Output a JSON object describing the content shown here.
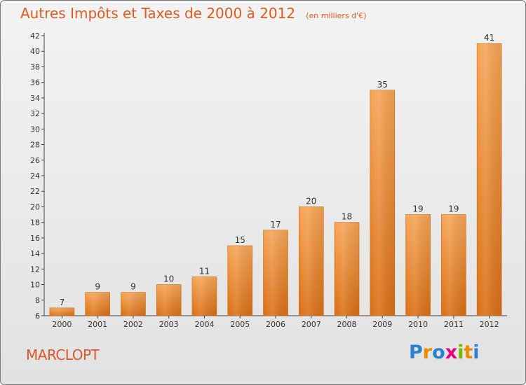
{
  "chart_data": {
    "type": "bar",
    "title": "Autres Impôts et Taxes de 2000 à 2012",
    "subtitle": "(en milliers d'€)",
    "categories": [
      "2000",
      "2001",
      "2002",
      "2003",
      "2004",
      "2005",
      "2006",
      "2007",
      "2008",
      "2009",
      "2010",
      "2011",
      "2012"
    ],
    "values": [
      7,
      9,
      9,
      10,
      11,
      15,
      17,
      20,
      18,
      35,
      19,
      19,
      41
    ],
    "ylim": [
      6,
      42
    ],
    "yticks": [
      6,
      8,
      10,
      12,
      14,
      16,
      18,
      20,
      22,
      24,
      26,
      28,
      30,
      32,
      34,
      36,
      38,
      40,
      42
    ],
    "grid": false,
    "bar_color_top": "#f5a555",
    "bar_color_bottom": "#d96f14"
  },
  "footer": {
    "location": "MARCLOPT",
    "brand_letters": [
      {
        "ch": "P",
        "color": "#2b7fd4"
      },
      {
        "ch": "r",
        "color": "#f08a00"
      },
      {
        "ch": "o",
        "color": "#2b7fd4"
      },
      {
        "ch": "x",
        "color": "#e3007d"
      },
      {
        "ch": "i",
        "color": "#7ab800"
      },
      {
        "ch": "t",
        "color": "#f08a00"
      },
      {
        "ch": "i",
        "color": "#2b7fd4"
      }
    ]
  }
}
